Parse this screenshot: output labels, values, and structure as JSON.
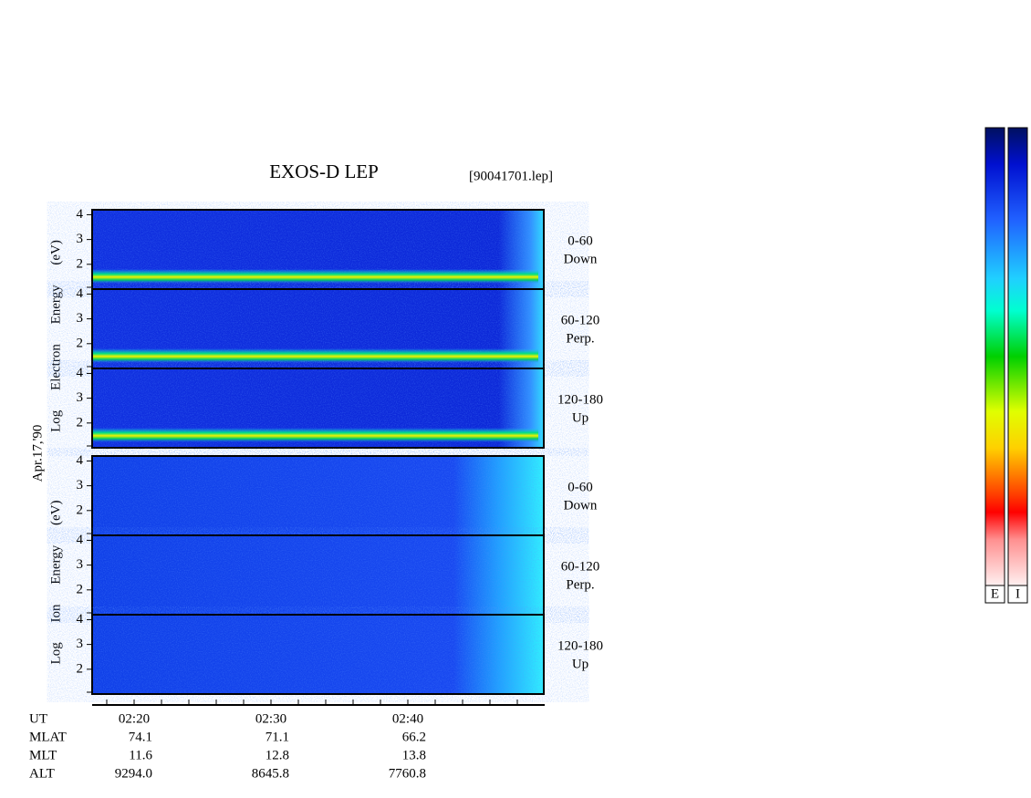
{
  "title": "EXOS-D LEP",
  "file": "[90041701.lep]",
  "date_label": "Apr.17,'90",
  "ylim": [
    1,
    4.2
  ],
  "yticks": [
    2,
    3,
    4
  ],
  "groups": [
    {
      "species": "Electron",
      "ylabel": "Log Electron Energy (eV)",
      "panels": [
        {
          "pitch": "0-60",
          "dir": "Down"
        },
        {
          "pitch": "60-120",
          "dir": "Perp."
        },
        {
          "pitch": "120-180",
          "dir": "Up"
        }
      ]
    },
    {
      "species": "Ion",
      "ylabel": "Log Ion Energy (eV)",
      "panels": [
        {
          "pitch": "0-60",
          "dir": "Down"
        },
        {
          "pitch": "60-120",
          "dir": "Perp."
        },
        {
          "pitch": "120-180",
          "dir": "Up"
        }
      ]
    }
  ],
  "ephemeris": {
    "labels": [
      "UT",
      "MLAT",
      "MLT",
      "ALT"
    ],
    "columns": [
      [
        "02:20",
        "74.1",
        "11.6",
        "9294.0"
      ],
      [
        "02:30",
        "71.1",
        "12.8",
        "8645.8"
      ],
      [
        "02:40",
        "66.2",
        "13.8",
        "7760.8"
      ]
    ]
  },
  "colorbar_labels": [
    "E",
    "I"
  ]
}
